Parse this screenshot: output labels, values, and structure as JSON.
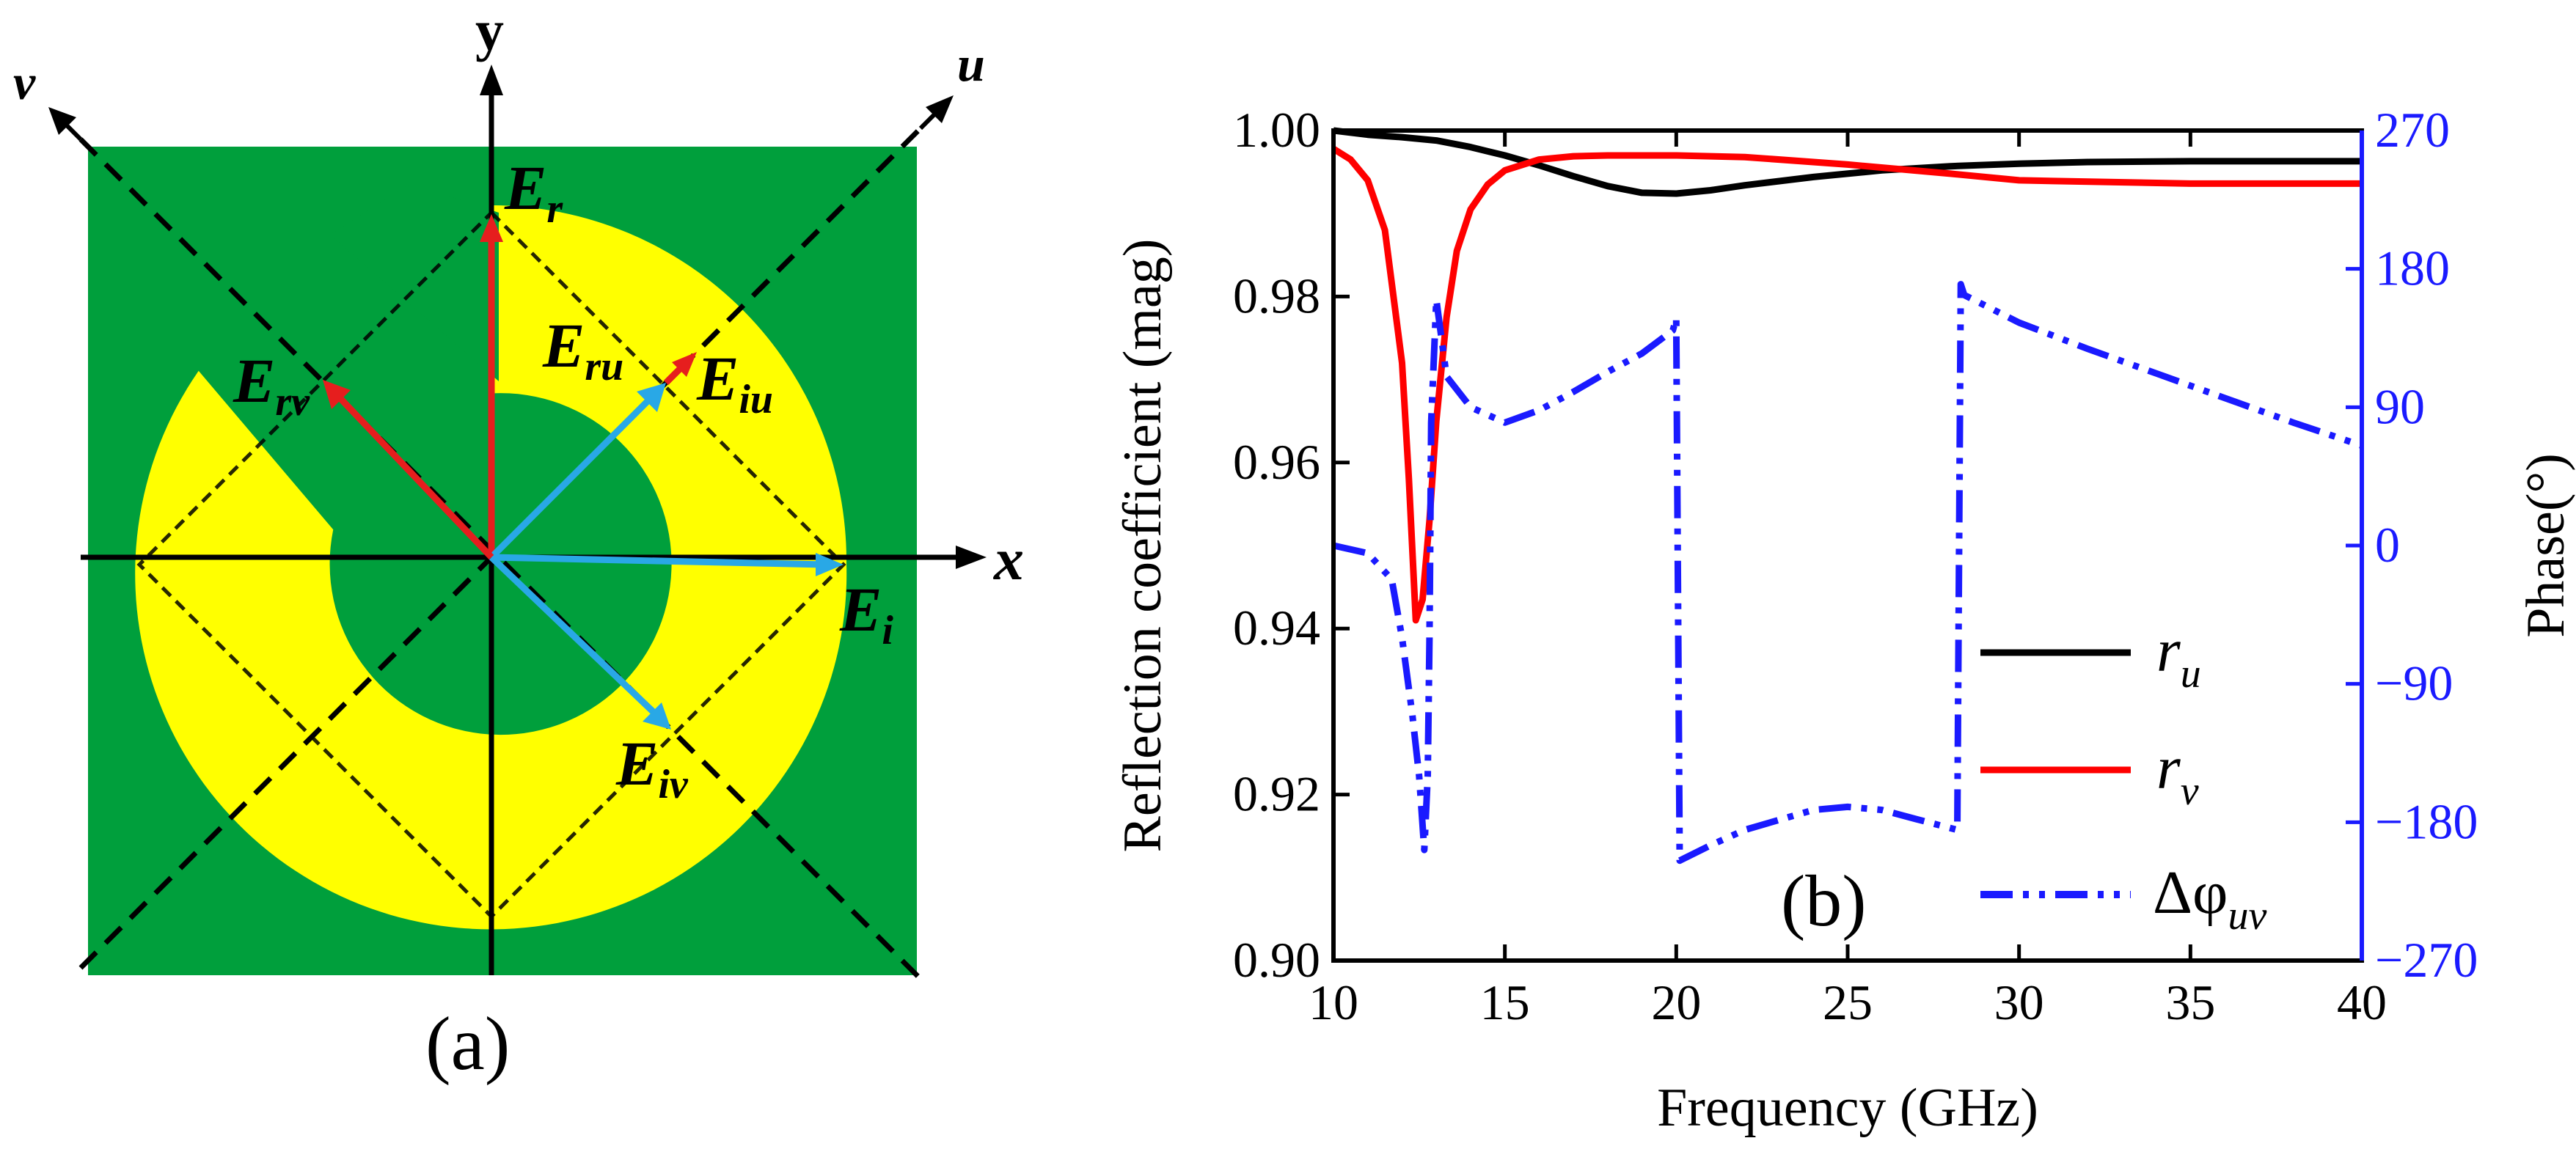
{
  "panel_a": {
    "caption": "(a)",
    "axis_labels": {
      "x": "x",
      "y": "y",
      "u": "u",
      "v": "v"
    },
    "vectors": [
      {
        "base": "E",
        "sub": "i",
        "color": "#29a8e6"
      },
      {
        "base": "E",
        "sub": "r",
        "color": "#e61e1e"
      },
      {
        "base": "E",
        "sub": "iu",
        "color": "#29a8e6"
      },
      {
        "base": "E",
        "sub": "ru",
        "color": "#e61e1e"
      },
      {
        "base": "E",
        "sub": "iv",
        "color": "#29a8e6"
      },
      {
        "base": "E",
        "sub": "rv",
        "color": "#e61e1e"
      }
    ],
    "colors": {
      "substrate": "#009f3c",
      "metal_ring": "#ffff00"
    }
  },
  "panel_b": {
    "caption": "(b)",
    "chart_data": {
      "type": "line",
      "xlabel": "Frequency (GHz)",
      "ylabel": "Reflection coefficient (mag)",
      "y2label": "Phase(°)",
      "xlim": [
        10,
        40
      ],
      "ylim": [
        0.9,
        1.0
      ],
      "y2lim": [
        -270,
        270
      ],
      "x_ticks": [
        "10",
        "15",
        "20",
        "25",
        "30",
        "35",
        "40"
      ],
      "y_ticks": [
        "0.90",
        "0.92",
        "0.94",
        "0.96",
        "0.98",
        "1.00"
      ],
      "y2_ticks": [
        "-270",
        "-180",
        "-90",
        "0",
        "90",
        "180",
        "270"
      ],
      "legend": [
        {
          "base": "r",
          "sub": "u",
          "color": "#000000",
          "style": "solid"
        },
        {
          "base": "r",
          "sub": "v",
          "color": "#ff0000",
          "style": "solid"
        },
        {
          "base": "Δφ",
          "sub": "uv",
          "color": "#1a1aff",
          "style": "dashdot"
        }
      ],
      "series": [
        {
          "name": "r_u",
          "axis": "left",
          "color": "#000000",
          "x": [
            10,
            11,
            12,
            13,
            14,
            15,
            16,
            17,
            18,
            19,
            20,
            21,
            22,
            24,
            26,
            28,
            30,
            32,
            35,
            38,
            40
          ],
          "y": [
            1.0,
            0.9995,
            0.9992,
            0.9988,
            0.998,
            0.997,
            0.9958,
            0.9945,
            0.9933,
            0.9925,
            0.9924,
            0.9928,
            0.9934,
            0.9944,
            0.9952,
            0.9957,
            0.996,
            0.9962,
            0.9963,
            0.9963,
            0.9963
          ]
        },
        {
          "name": "r_v",
          "axis": "left",
          "color": "#ff0000",
          "x": [
            10,
            10.5,
            11,
            11.5,
            12,
            12.2,
            12.4,
            12.6,
            12.8,
            13,
            13.3,
            13.6,
            14,
            14.5,
            15,
            16,
            17,
            18,
            20,
            22,
            25,
            28,
            30,
            35,
            40
          ],
          "y": [
            0.9978,
            0.9965,
            0.994,
            0.988,
            0.972,
            0.958,
            0.941,
            0.9435,
            0.953,
            0.965,
            0.9775,
            0.9855,
            0.9905,
            0.9935,
            0.9952,
            0.9965,
            0.9969,
            0.997,
            0.997,
            0.9968,
            0.9959,
            0.9948,
            0.994,
            0.9936,
            0.9936
          ]
        },
        {
          "name": "Δφ_uv",
          "axis": "right",
          "color": "#1a1aff",
          "x": [
            10,
            11,
            11.7,
            12.0,
            12.3,
            12.5,
            12.65,
            12.75,
            12.8,
            12.85,
            13.0,
            13.3,
            14,
            15,
            16,
            17,
            18,
            19,
            19.9,
            20.0,
            20.1,
            21,
            22,
            24,
            25,
            26,
            27,
            28.2,
            28.3,
            28.4,
            30,
            32,
            34,
            36,
            38,
            40
          ],
          "y": [
            0,
            -5,
            -22,
            -60,
            -110,
            -150,
            -198,
            -150,
            -60,
            80,
            160,
            110,
            90,
            80,
            88,
            100,
            113,
            125,
            140,
            148,
            -205,
            -195,
            -185,
            -172,
            -170,
            -172,
            -178,
            -185,
            170,
            163,
            145,
            128,
            112,
            96,
            80,
            65
          ]
        }
      ]
    }
  }
}
